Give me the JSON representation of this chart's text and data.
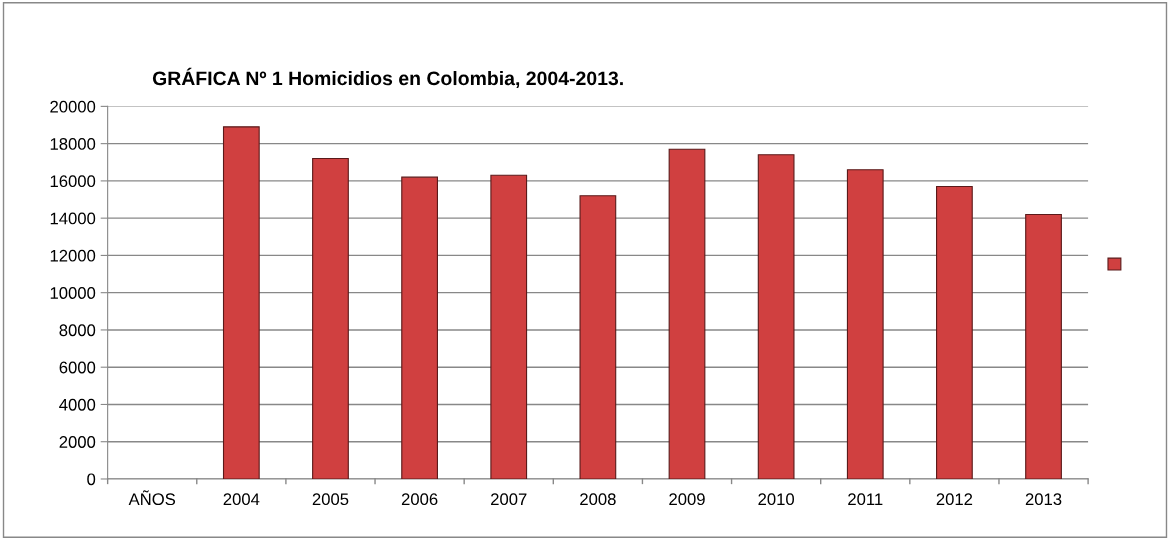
{
  "chart_data": {
    "type": "bar",
    "title": "GRÁFICA Nº 1 Homicidios en Colombia, 2004-2013.",
    "categories": [
      "AÑOS",
      "2004",
      "2005",
      "2006",
      "2007",
      "2008",
      "2009",
      "2010",
      "2011",
      "2012",
      "2013"
    ],
    "series": [
      {
        "color": "#d04040",
        "values": [
          null,
          18900,
          17200,
          16200,
          16300,
          15200,
          17700,
          17400,
          16600,
          15700,
          14200
        ]
      }
    ],
    "ylim": [
      0,
      20000
    ],
    "yticks": [
      0,
      2000,
      4000,
      6000,
      8000,
      10000,
      12000,
      14000,
      16000,
      18000,
      20000
    ],
    "grid": "y"
  }
}
